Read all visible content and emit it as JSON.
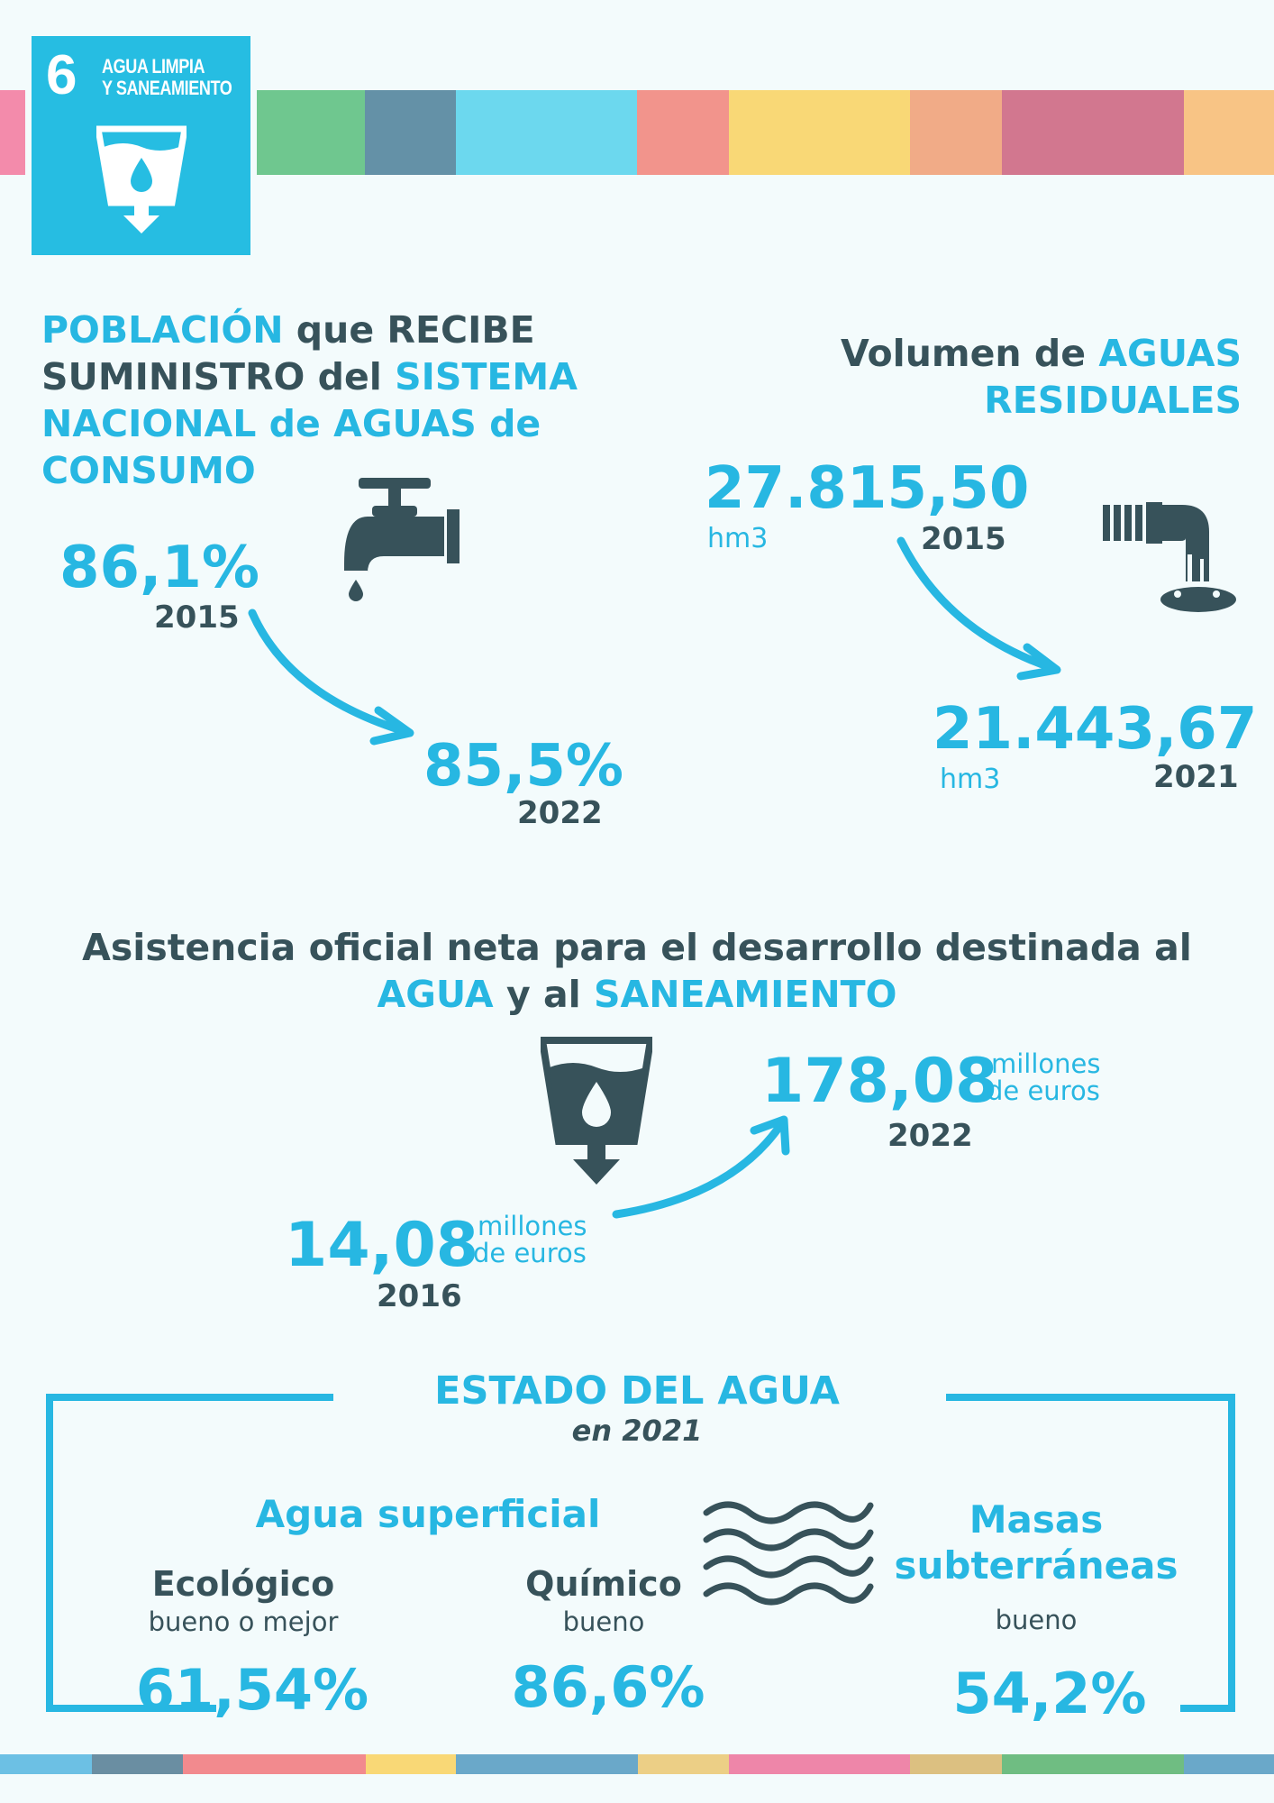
{
  "colors": {
    "accent": "#27b7e2",
    "dark": "#37525a",
    "badge": "#26bde2"
  },
  "badge": {
    "number": "6",
    "label_line1": "AGUA LIMPIA",
    "label_line2": "Y SANEAMIENTO",
    "icon": "water-glass-icon"
  },
  "population": {
    "title": {
      "w1": "POBLACIÓN",
      "w2": " que RECIBE",
      "w3": "SUMINISTRO del ",
      "w4": "SISTEMA",
      "w5": "NACIONAL de AGUAS de",
      "w6": "CONSUMO"
    },
    "icon": "faucet-icon",
    "from": {
      "value": "86,1%",
      "year": "2015"
    },
    "to": {
      "value": "85,5%",
      "year": "2022"
    }
  },
  "wastewater": {
    "title": {
      "w1": "Volumen de ",
      "w2": "AGUAS",
      "w3": "RESIDUALES"
    },
    "icon": "drain-pipe-icon",
    "from": {
      "value": "27.815,50",
      "unit": "hm3",
      "year": "2015"
    },
    "to": {
      "value": "21.443,67",
      "unit": "hm3",
      "year": "2021"
    }
  },
  "aid": {
    "title": {
      "line1": "Asistencia oficial neta para el desarrollo destinada al",
      "w1": "AGUA",
      "w2": " y al ",
      "w3": "SANEAMIENTO"
    },
    "icon": "water-glass-icon",
    "from": {
      "value": "14,08",
      "unit_line1": "millones",
      "unit_line2": "de euros",
      "year": "2016"
    },
    "to": {
      "value": "178,08",
      "unit_line1": "millones",
      "unit_line2": "de euros",
      "year": "2022"
    }
  },
  "water_status": {
    "title": "ESTADO DEL AGUA",
    "subtitle": "en 2021",
    "surface": {
      "title": "Agua superficial",
      "ecological": {
        "label": "Ecológico",
        "desc": "bueno o mejor",
        "value": "61,54%"
      },
      "chemical": {
        "label": "Químico",
        "desc": "bueno",
        "value": "86,6%"
      }
    },
    "waves_icon": "waves-icon",
    "groundwater": {
      "title_line1": "Masas",
      "title_line2": "subterráneas",
      "desc": "bueno",
      "value": "54,2%"
    }
  }
}
